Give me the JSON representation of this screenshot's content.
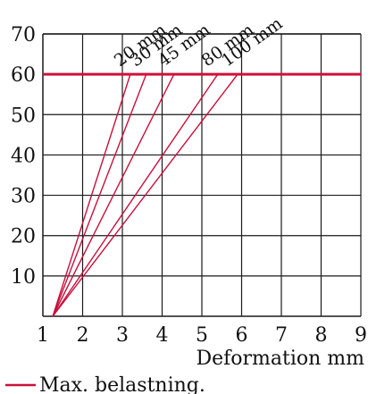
{
  "chart_data": {
    "type": "line",
    "xlabel": "Deformation mm",
    "ylabel": "",
    "title": "",
    "xlim": [
      1,
      9
    ],
    "ylim": [
      0,
      70
    ],
    "x_ticks": [
      1,
      2,
      3,
      4,
      5,
      6,
      7,
      8,
      9
    ],
    "y_ticks": [
      10,
      20,
      30,
      40,
      50,
      60,
      70
    ],
    "grid": true,
    "series": [
      {
        "name": "20 mm",
        "x": [
          1.25,
          3.2
        ],
        "y": [
          0,
          60
        ]
      },
      {
        "name": "30 mm",
        "x": [
          1.25,
          3.6
        ],
        "y": [
          0,
          60
        ]
      },
      {
        "name": "45 mm",
        "x": [
          1.25,
          4.3
        ],
        "y": [
          0,
          60
        ]
      },
      {
        "name": "80 mm",
        "x": [
          1.25,
          5.4
        ],
        "y": [
          0,
          60
        ]
      },
      {
        "name": "100 mm",
        "x": [
          1.25,
          5.9
        ],
        "y": [
          0,
          60
        ]
      }
    ],
    "reference_line": {
      "label": "Max. belastning.",
      "y": 60
    },
    "colors": {
      "series": "#c8103c",
      "grid": "#1a1a1a",
      "reference": "#d0103a"
    }
  }
}
